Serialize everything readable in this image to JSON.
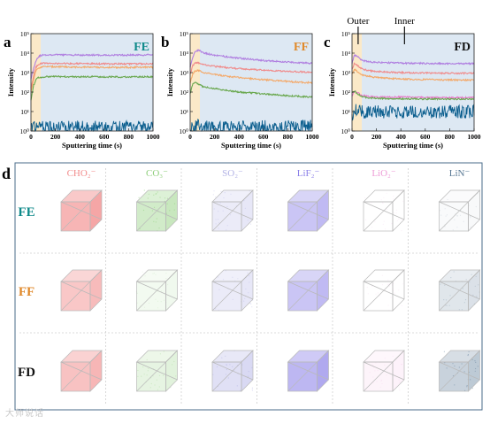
{
  "chart_data": [
    {
      "type": "line",
      "panel": "a",
      "label": "FE",
      "label_color": "#0f8a8a",
      "xlabel": "Sputtering time (s)",
      "ylabel": "Intensity",
      "xlim": [
        0,
        1000
      ],
      "ylim_log10": [
        0,
        5
      ],
      "y_tick_labels": [
        "10⁰",
        "10¹",
        "10²",
        "10³",
        "10⁴",
        "10⁵"
      ],
      "x_tick_labels": [
        "0",
        "200",
        "400",
        "600",
        "800",
        "1000"
      ],
      "x": [
        0,
        20,
        40,
        60,
        80,
        100,
        150,
        200,
        300,
        400,
        500,
        600,
        700,
        800,
        900,
        1000
      ],
      "series": [
        {
          "color": "#b07fe0",
          "values": [
            500,
            1500,
            4000,
            6500,
            7500,
            8000,
            8200,
            8200,
            8100,
            8000,
            8000,
            7900,
            7900,
            7900,
            8000,
            8200
          ]
        },
        {
          "color": "#f08a8a",
          "values": [
            150,
            600,
            1800,
            2600,
            2900,
            3000,
            3000,
            2950,
            2900,
            2900,
            2850,
            2800,
            2800,
            2800,
            2850,
            2900
          ]
        },
        {
          "color": "#f4a868",
          "values": [
            100,
            400,
            1200,
            1700,
            1900,
            2000,
            2000,
            2000,
            1950,
            1900,
            1900,
            1850,
            1850,
            1850,
            1900,
            1900
          ]
        },
        {
          "color": "#6aa84f",
          "values": [
            40,
            200,
            450,
            550,
            580,
            600,
            610,
            620,
            620,
            610,
            610,
            600,
            600,
            600,
            610,
            620
          ]
        },
        {
          "color": "#0b5e8e",
          "values": [
            1.3,
            1.4,
            1.5,
            1.6,
            1.8,
            1.5,
            1.4,
            1.5,
            1.6,
            1.5,
            1.5,
            1.6,
            1.5,
            1.5,
            1.6,
            1.5
          ]
        }
      ],
      "outer_band": [
        0,
        80
      ]
    },
    {
      "type": "line",
      "panel": "b",
      "label": "FF",
      "label_color": "#e08a2c",
      "xlabel": "Sputtering time (s)",
      "ylabel": "Intensity",
      "xlim": [
        0,
        1000
      ],
      "ylim_log10": [
        0,
        5
      ],
      "y_tick_labels": [
        "10⁰",
        "10¹",
        "10²",
        "10³",
        "10⁴",
        "10⁵"
      ],
      "x_tick_labels": [
        "0",
        "200",
        "400",
        "600",
        "800",
        "1000"
      ],
      "x": [
        0,
        20,
        40,
        60,
        80,
        100,
        150,
        200,
        300,
        400,
        500,
        600,
        700,
        800,
        900,
        1000
      ],
      "series": [
        {
          "color": "#b07fe0",
          "values": [
            2000,
            6000,
            12000,
            14000,
            13000,
            11000,
            9000,
            8000,
            6500,
            5500,
            4800,
            4200,
            3800,
            3500,
            3200,
            3000
          ]
        },
        {
          "color": "#f08a8a",
          "values": [
            800,
            2200,
            3000,
            3200,
            3000,
            2700,
            2300,
            2100,
            1800,
            1600,
            1450,
            1350,
            1250,
            1150,
            1100,
            1050
          ]
        },
        {
          "color": "#f4a868",
          "values": [
            300,
            800,
            1200,
            1300,
            1200,
            1050,
            900,
            800,
            650,
            560,
            490,
            430,
            390,
            350,
            320,
            300
          ]
        },
        {
          "color": "#6aa84f",
          "values": [
            80,
            250,
            300,
            280,
            230,
            200,
            170,
            150,
            120,
            100,
            90,
            80,
            72,
            65,
            60,
            55
          ]
        },
        {
          "color": "#0b5e8e",
          "values": [
            1.4,
            1.6,
            1.8,
            1.9,
            1.8,
            1.6,
            1.5,
            1.6,
            1.6,
            1.5,
            1.6,
            1.6,
            1.5,
            1.6,
            1.6,
            1.7
          ]
        }
      ],
      "outer_band": [
        0,
        80
      ]
    },
    {
      "type": "line",
      "panel": "c",
      "label": "FD",
      "label_color": "#111111",
      "xlabel": "Sputtering time (s)",
      "ylabel": "Intensity",
      "xlim": [
        0,
        1000
      ],
      "ylim_log10": [
        0,
        5
      ],
      "y_tick_labels": [
        "10⁰",
        "10¹",
        "10²",
        "10³",
        "10⁴",
        "10⁵"
      ],
      "x_tick_labels": [
        "0",
        "200",
        "400",
        "600",
        "800",
        "1000"
      ],
      "annotations": [
        {
          "text": "Outer",
          "x": 50
        },
        {
          "text": "Inner",
          "x": 430
        }
      ],
      "x": [
        0,
        20,
        40,
        60,
        80,
        100,
        150,
        200,
        300,
        400,
        500,
        600,
        700,
        800,
        900,
        1000
      ],
      "series": [
        {
          "color": "#b07fe0",
          "values": [
            3000,
            8000,
            7000,
            5500,
            4500,
            4000,
            3600,
            3400,
            3200,
            3100,
            3000,
            2950,
            2900,
            2900,
            2900,
            2900
          ]
        },
        {
          "color": "#f08a8a",
          "values": [
            1500,
            3000,
            2500,
            1900,
            1600,
            1400,
            1250,
            1150,
            1050,
            1000,
            980,
            960,
            940,
            930,
            920,
            920
          ]
        },
        {
          "color": "#f4a868",
          "values": [
            800,
            1500,
            1200,
            950,
            800,
            700,
            620,
            560,
            500,
            470,
            450,
            440,
            430,
            420,
            415,
            410
          ]
        },
        {
          "color": "#e879c9",
          "values": [
            60,
            120,
            100,
            80,
            70,
            65,
            60,
            58,
            55,
            55,
            54,
            53,
            53,
            52,
            52,
            52
          ]
        },
        {
          "color": "#6aa84f",
          "values": [
            90,
            110,
            90,
            70,
            60,
            55,
            50,
            48,
            46,
            45,
            45,
            44,
            44,
            44,
            44,
            44
          ]
        },
        {
          "color": "#0b5e8e",
          "values": [
            6,
            14,
            12,
            10,
            10,
            9,
            10,
            10,
            9,
            10,
            10,
            9,
            10,
            10,
            10,
            10
          ]
        }
      ],
      "outer_band": [
        0,
        80
      ]
    },
    {
      "type": "heatmap",
      "panel": "d",
      "columns": [
        {
          "label": "CHO₂⁻",
          "color": "#f28b8b"
        },
        {
          "label": "CO₃⁻",
          "color": "#8fcf7c"
        },
        {
          "label": "SO₂⁻",
          "color": "#b3b3e6"
        },
        {
          "label": "LiF₂⁻",
          "color": "#8a7fe8"
        },
        {
          "label": "LiO₂⁻",
          "color": "#ee9bd6"
        },
        {
          "label": "LiN⁻",
          "color": "#5c7b96"
        }
      ],
      "rows": [
        {
          "label": "FE",
          "color": "#0f8a8a",
          "intensity": [
            0.85,
            0.55,
            0.35,
            0.6,
            0.0,
            0.05
          ]
        },
        {
          "label": "FF",
          "color": "#e08a2c",
          "intensity": [
            0.65,
            0.15,
            0.35,
            0.6,
            0.0,
            0.25
          ]
        },
        {
          "label": "FD",
          "color": "#111111",
          "intensity": [
            0.7,
            0.3,
            0.55,
            0.75,
            0.15,
            0.45
          ]
        }
      ]
    }
  ],
  "panel_letters": [
    "a",
    "b",
    "c",
    "d"
  ],
  "watermark": "大师说话"
}
